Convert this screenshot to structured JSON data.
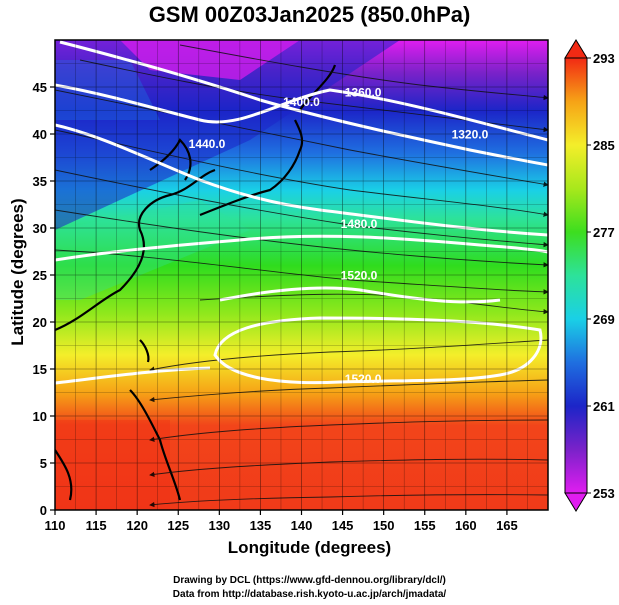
{
  "title": "GSM 00Z03Jan2025 (850.0hPa)",
  "xlabel": "Longitude (degrees)",
  "ylabel": "Latitude  (degrees)",
  "credit_line1": "Drawing by DCL (https://www.gfd-dennou.org/library/dcl/)",
  "credit_line2": "Data from http://database.rish.kyoto-u.ac.jp/arch/jmadata/",
  "chart_data": {
    "type": "heatmap",
    "title": "GSM 00Z03Jan2025 (850.0hPa)",
    "xlabel": "Longitude (degrees)",
    "ylabel": "Latitude  (degrees)",
    "xlim": [
      110,
      170
    ],
    "ylim": [
      0,
      50
    ],
    "xticks": [
      110,
      115,
      120,
      125,
      130,
      135,
      140,
      145,
      150,
      155,
      160,
      165
    ],
    "yticks": [
      0,
      5,
      10,
      15,
      20,
      25,
      30,
      35,
      40,
      45
    ],
    "grid": true,
    "colorbar": {
      "min": 253,
      "max": 293,
      "tick_labels": [
        "293",
        "285",
        "277",
        "269",
        "261",
        "253"
      ],
      "ticks": [
        293,
        285,
        277,
        269,
        261,
        253
      ],
      "colors": [
        "#e01df0",
        "#7a22c9",
        "#1c25c8",
        "#1f6fe0",
        "#1ad0e6",
        "#2de29a",
        "#3dde1f",
        "#a8e81c",
        "#f4ee2a",
        "#f6a316",
        "#f4541b",
        "#f22a14"
      ]
    },
    "contours": [
      {
        "label": "1360.0",
        "lon": 147.5,
        "lat": 44
      },
      {
        "label": "1400.0",
        "lon": 140,
        "lat": 43
      },
      {
        "label": "1320.0",
        "lon": 160.5,
        "lat": 39.5
      },
      {
        "label": "1440.0",
        "lon": 128.5,
        "lat": 38.5
      },
      {
        "label": "1480.0",
        "lon": 147,
        "lat": 30
      },
      {
        "label": "1520.0",
        "lon": 147,
        "lat": 24.5
      },
      {
        "label": "1520.0",
        "lon": 147.5,
        "lat": 13.5
      }
    ]
  }
}
